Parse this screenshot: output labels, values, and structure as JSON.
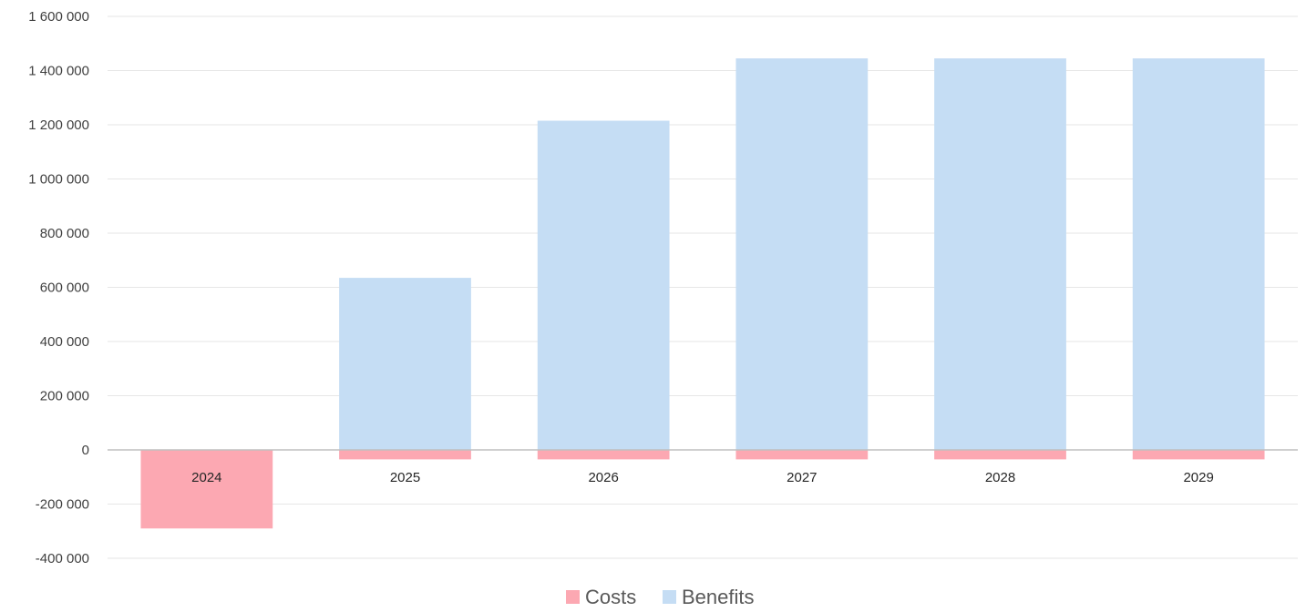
{
  "chart_data": {
    "type": "bar",
    "stacked": true,
    "categories": [
      "2024",
      "2025",
      "2026",
      "2027",
      "2028",
      "2029"
    ],
    "series": [
      {
        "name": "Costs",
        "color": "#fca8b2",
        "values": [
          -290000,
          -35000,
          -35000,
          -35000,
          -35000,
          -35000
        ]
      },
      {
        "name": "Benefits",
        "color": "#c5ddf4",
        "values": [
          0,
          635000,
          1215000,
          1445000,
          1445000,
          1445000
        ]
      }
    ],
    "ylim": [
      -400000,
      1600000
    ],
    "yticks": [
      -400000,
      -200000,
      0,
      200000,
      400000,
      600000,
      800000,
      1000000,
      1200000,
      1400000,
      1600000
    ],
    "ytick_labels": [
      "-400 000",
      "-200 000",
      "0",
      "200 000",
      "400 000",
      "600 000",
      "800 000",
      "1 000 000",
      "1 200 000",
      "1 400 000",
      "1 600 000"
    ],
    "grid": true,
    "legend_position": "bottom-center",
    "title": "",
    "xlabel": "",
    "ylabel": ""
  }
}
